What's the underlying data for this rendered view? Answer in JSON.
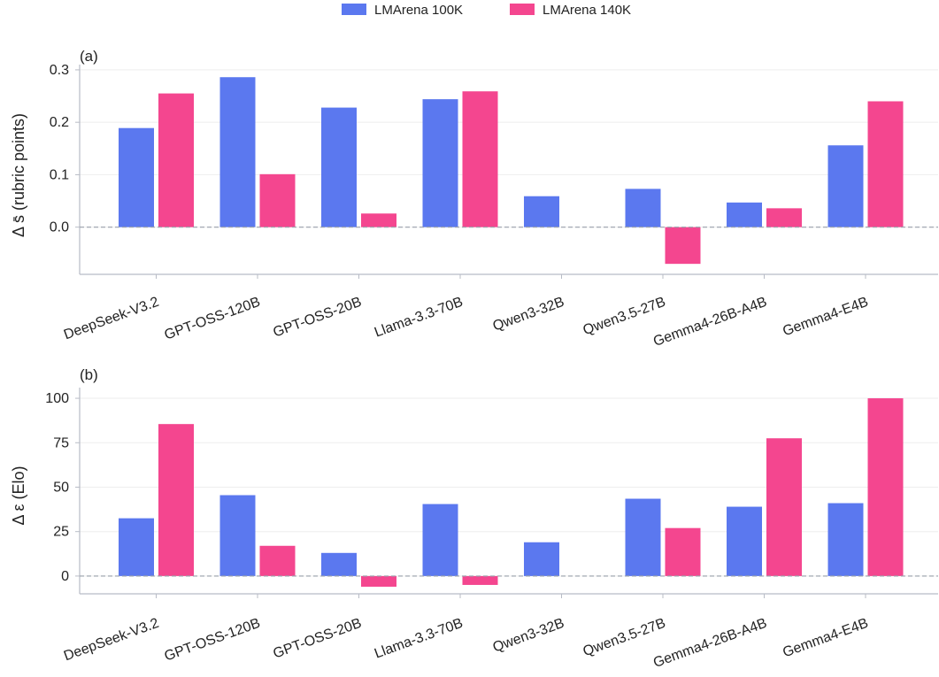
{
  "legend": {
    "placement": "top-center",
    "entries": [
      {
        "label": "LMArena 100K",
        "color": "#5b78ef"
      },
      {
        "label": "LMArena 140K",
        "color": "#f4468f"
      }
    ]
  },
  "colors": {
    "series_100k": "#5b78ef",
    "series_140k": "#f4468f",
    "zero_line": "#9aa0ab",
    "grid": "#eeeeee",
    "axis": "#b8bcc6"
  },
  "chart_data": [
    {
      "type": "bar",
      "panel_label": "(a)",
      "ylabel": "Δ s̄  (rubric points)",
      "categories": [
        "DeepSeek-V3.2",
        "GPT-OSS-120B",
        "GPT-OSS-20B",
        "Llama-3.3-70B",
        "Qwen3-32B",
        "Qwen3.5-27B",
        "Gemma4-26B-A4B",
        "Gemma4-E4B"
      ],
      "series": [
        {
          "name": "LMArena 100K",
          "values": [
            0.189,
            0.286,
            0.228,
            0.244,
            0.059,
            0.073,
            0.047,
            0.156
          ]
        },
        {
          "name": "LMArena 140K",
          "values": [
            0.255,
            0.101,
            0.026,
            0.259,
            null,
            -0.07,
            0.036,
            0.24
          ]
        }
      ],
      "ylim": [
        -0.09,
        0.31
      ],
      "yticks": [
        0.0,
        0.1,
        0.2,
        0.3
      ],
      "ytick_labels": [
        "0.0",
        "0.1",
        "0.2",
        "0.3"
      ],
      "grid": true,
      "zero_line": "dashed"
    },
    {
      "type": "bar",
      "panel_label": "(b)",
      "ylabel": "Δ ε  (Elo)",
      "categories": [
        "DeepSeek-V3.2",
        "GPT-OSS-120B",
        "GPT-OSS-20B",
        "Llama-3.3-70B",
        "Qwen3-32B",
        "Qwen3.5-27B",
        "Gemma4-26B-A4B",
        "Gemma4-E4B"
      ],
      "series": [
        {
          "name": "LMArena 100K",
          "values": [
            32.5,
            45.5,
            13.0,
            40.5,
            19.0,
            43.5,
            39.0,
            41.0
          ]
        },
        {
          "name": "LMArena 140K",
          "values": [
            85.5,
            17.0,
            -6.0,
            -5.0,
            null,
            27.0,
            77.5,
            100.0
          ]
        }
      ],
      "ylim": [
        -10,
        106
      ],
      "yticks": [
        0,
        25,
        50,
        75,
        100
      ],
      "ytick_labels": [
        "0",
        "25",
        "50",
        "75",
        "100"
      ],
      "grid": true,
      "zero_line": "dashed"
    }
  ]
}
